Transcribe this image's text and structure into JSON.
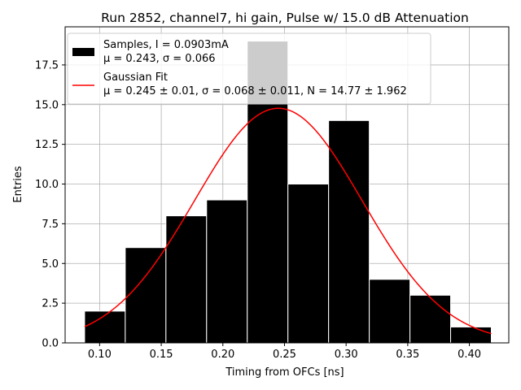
{
  "chart_data": {
    "type": "bar",
    "title": "Run 2852, channel7, hi gain, Pulse w/ 15.0 dB Attenuation",
    "xlabel": "Timing from OFCs [ns]",
    "ylabel": "Entries",
    "xlim": [
      0.072,
      0.432
    ],
    "ylim": [
      0,
      19.9
    ],
    "grid": true,
    "legend_position": "upper-left",
    "xticks": [
      0.1,
      0.15,
      0.2,
      0.25,
      0.3,
      0.35,
      0.4
    ],
    "xtick_labels": [
      "0.10",
      "0.15",
      "0.20",
      "0.25",
      "0.30",
      "0.35",
      "0.40"
    ],
    "yticks": [
      0.0,
      2.5,
      5.0,
      7.5,
      10.0,
      12.5,
      15.0,
      17.5
    ],
    "ytick_labels": [
      "0.0",
      "2.5",
      "5.0",
      "7.5",
      "10.0",
      "12.5",
      "15.0",
      "17.5"
    ],
    "bin_edges": [
      0.0878,
      0.1208,
      0.1538,
      0.1868,
      0.2198,
      0.2528,
      0.2858,
      0.3188,
      0.3518,
      0.3848,
      0.4178
    ],
    "counts": [
      2,
      6,
      8,
      9,
      19,
      10,
      14,
      4,
      3,
      1
    ],
    "bar_color": "#000000",
    "bar_edge_color": "#ffffff",
    "fit": {
      "mu": 0.245,
      "sigma": 0.068,
      "N": 14.77,
      "x_range": [
        0.0878,
        0.4178
      ],
      "color": "#ff0000"
    },
    "legend": [
      {
        "kind": "patch",
        "color": "#000000",
        "line1": "Samples, I = 0.0903mA",
        "line2": "μ = 0.243, σ = 0.066"
      },
      {
        "kind": "line",
        "color": "#ff0000",
        "line1": "Gaussian Fit",
        "line2": "μ = 0.245 ± 0.01, σ = 0.068 ± 0.011, N = 14.77 ± 1.962"
      }
    ]
  }
}
